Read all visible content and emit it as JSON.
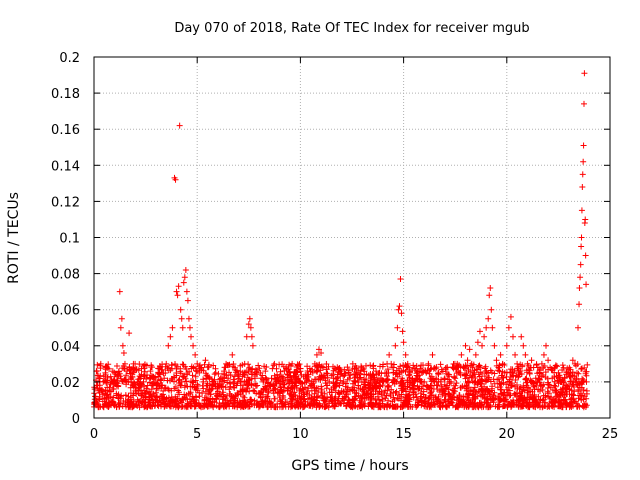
{
  "chart_data": {
    "type": "scatter",
    "title": "Day 070 of 2018, Rate Of TEC Index for receiver mgub",
    "xlabel": "GPS time / hours",
    "ylabel": "ROTI / TECUs",
    "xlim": [
      0,
      25
    ],
    "ylim": [
      0,
      0.2
    ],
    "x_ticks": [
      0,
      5,
      10,
      15,
      20,
      25
    ],
    "x_tick_labels": [
      "0",
      "5",
      "10",
      "15",
      "20",
      "25"
    ],
    "y_ticks": [
      0,
      0.02,
      0.04,
      0.06,
      0.08,
      0.1,
      0.12,
      0.14,
      0.16,
      0.18,
      0.2
    ],
    "y_tick_labels": [
      "0",
      "0.02",
      "0.04",
      "0.06",
      "0.08",
      "0.1",
      "0.12",
      "0.14",
      "0.16",
      "0.18",
      "0.2"
    ],
    "grid": true,
    "marker": "+",
    "color": "#ff0000",
    "series": [
      {
        "name": "ROTI",
        "points": [
          [
            0.05,
            0.012
          ],
          [
            0.15,
            0.018
          ],
          [
            0.25,
            0.022
          ],
          [
            0.35,
            0.015
          ],
          [
            0.45,
            0.02
          ],
          [
            0.55,
            0.025
          ],
          [
            0.65,
            0.013
          ],
          [
            0.75,
            0.017
          ],
          [
            0.85,
            0.021
          ],
          [
            0.95,
            0.016
          ],
          [
            1.05,
            0.019
          ],
          [
            1.15,
            0.024
          ],
          [
            1.25,
            0.07
          ],
          [
            1.3,
            0.05
          ],
          [
            1.35,
            0.055
          ],
          [
            1.4,
            0.04
          ],
          [
            1.45,
            0.036
          ],
          [
            1.5,
            0.03
          ],
          [
            1.6,
            0.026
          ],
          [
            1.7,
            0.047
          ],
          [
            1.8,
            0.022
          ],
          [
            1.9,
            0.018
          ],
          [
            2.0,
            0.015
          ],
          [
            2.1,
            0.02
          ],
          [
            2.2,
            0.017
          ],
          [
            2.3,
            0.024
          ],
          [
            2.4,
            0.02
          ],
          [
            2.5,
            0.012
          ],
          [
            2.6,
            0.018
          ],
          [
            2.7,
            0.022
          ],
          [
            2.8,
            0.016
          ],
          [
            2.9,
            0.02
          ],
          [
            3.0,
            0.014
          ],
          [
            3.1,
            0.019
          ],
          [
            3.2,
            0.024
          ],
          [
            3.3,
            0.018
          ],
          [
            3.4,
            0.022
          ],
          [
            3.5,
            0.03
          ],
          [
            3.6,
            0.04
          ],
          [
            3.7,
            0.045
          ],
          [
            3.8,
            0.05
          ],
          [
            3.9,
            0.133
          ],
          [
            3.95,
            0.132
          ],
          [
            4.0,
            0.07
          ],
          [
            4.05,
            0.068
          ],
          [
            4.1,
            0.073
          ],
          [
            4.15,
            0.162
          ],
          [
            4.2,
            0.06
          ],
          [
            4.25,
            0.055
          ],
          [
            4.3,
            0.05
          ],
          [
            4.35,
            0.075
          ],
          [
            4.4,
            0.078
          ],
          [
            4.45,
            0.082
          ],
          [
            4.5,
            0.07
          ],
          [
            4.55,
            0.065
          ],
          [
            4.6,
            0.055
          ],
          [
            4.65,
            0.05
          ],
          [
            4.7,
            0.045
          ],
          [
            4.8,
            0.04
          ],
          [
            4.9,
            0.035
          ],
          [
            5.0,
            0.03
          ],
          [
            5.1,
            0.025
          ],
          [
            5.2,
            0.028
          ],
          [
            5.3,
            0.02
          ],
          [
            5.4,
            0.032
          ],
          [
            5.5,
            0.018
          ],
          [
            5.6,
            0.022
          ],
          [
            5.7,
            0.016
          ],
          [
            5.8,
            0.02
          ],
          [
            5.9,
            0.025
          ],
          [
            6.0,
            0.019
          ],
          [
            6.1,
            0.017
          ],
          [
            6.2,
            0.022
          ],
          [
            6.3,
            0.026
          ],
          [
            6.4,
            0.03
          ],
          [
            6.5,
            0.022
          ],
          [
            6.6,
            0.019
          ],
          [
            6.7,
            0.035
          ],
          [
            6.8,
            0.02
          ],
          [
            6.9,
            0.018
          ],
          [
            7.0,
            0.024
          ],
          [
            7.1,
            0.02
          ],
          [
            7.2,
            0.016
          ],
          [
            7.3,
            0.03
          ],
          [
            7.4,
            0.045
          ],
          [
            7.5,
            0.052
          ],
          [
            7.55,
            0.055
          ],
          [
            7.6,
            0.05
          ],
          [
            7.65,
            0.045
          ],
          [
            7.7,
            0.04
          ],
          [
            7.8,
            0.022
          ],
          [
            7.9,
            0.018
          ],
          [
            8.0,
            0.008
          ],
          [
            8.1,
            0.015
          ],
          [
            8.2,
            0.02
          ],
          [
            8.3,
            0.026
          ],
          [
            8.4,
            0.012
          ],
          [
            8.5,
            0.018
          ],
          [
            8.6,
            0.022
          ],
          [
            8.7,
            0.016
          ],
          [
            8.8,
            0.02
          ],
          [
            8.9,
            0.014
          ],
          [
            9.0,
            0.019
          ],
          [
            9.1,
            0.023
          ],
          [
            9.2,
            0.017
          ],
          [
            9.3,
            0.021
          ],
          [
            9.4,
            0.015
          ],
          [
            9.5,
            0.02
          ],
          [
            9.6,
            0.03
          ],
          [
            9.7,
            0.025
          ],
          [
            9.8,
            0.018
          ],
          [
            9.9,
            0.022
          ],
          [
            10.0,
            0.016
          ],
          [
            10.1,
            0.019
          ],
          [
            10.2,
            0.013
          ],
          [
            10.3,
            0.02
          ],
          [
            10.4,
            0.024
          ],
          [
            10.5,
            0.018
          ],
          [
            10.6,
            0.025
          ],
          [
            10.7,
            0.03
          ],
          [
            10.8,
            0.035
          ],
          [
            10.9,
            0.038
          ],
          [
            11.0,
            0.036
          ],
          [
            11.1,
            0.028
          ],
          [
            11.2,
            0.022
          ],
          [
            11.3,
            0.018
          ],
          [
            11.4,
            0.02
          ],
          [
            11.5,
            0.016
          ],
          [
            11.6,
            0.022
          ],
          [
            11.7,
            0.019
          ],
          [
            11.8,
            0.024
          ],
          [
            11.9,
            0.018
          ],
          [
            12.0,
            0.015
          ],
          [
            12.1,
            0.02
          ],
          [
            12.2,
            0.012
          ],
          [
            12.3,
            0.017
          ],
          [
            12.4,
            0.022
          ],
          [
            12.5,
            0.016
          ],
          [
            12.6,
            0.01
          ],
          [
            12.7,
            0.014
          ],
          [
            12.8,
            0.018
          ],
          [
            12.9,
            0.012
          ],
          [
            13.0,
            0.016
          ],
          [
            13.1,
            0.02
          ],
          [
            13.2,
            0.014
          ],
          [
            13.3,
            0.018
          ],
          [
            13.4,
            0.022
          ],
          [
            13.5,
            0.016
          ],
          [
            13.6,
            0.02
          ],
          [
            13.7,
            0.024
          ],
          [
            13.8,
            0.018
          ],
          [
            13.9,
            0.022
          ],
          [
            14.0,
            0.02
          ],
          [
            14.1,
            0.025
          ],
          [
            14.2,
            0.03
          ],
          [
            14.3,
            0.035
          ],
          [
            14.4,
            0.03
          ],
          [
            14.5,
            0.025
          ],
          [
            14.6,
            0.04
          ],
          [
            14.7,
            0.05
          ],
          [
            14.75,
            0.06
          ],
          [
            14.8,
            0.062
          ],
          [
            14.85,
            0.077
          ],
          [
            14.9,
            0.058
          ],
          [
            14.95,
            0.048
          ],
          [
            15.0,
            0.042
          ],
          [
            15.1,
            0.035
          ],
          [
            15.2,
            0.03
          ],
          [
            15.3,
            0.025
          ],
          [
            15.4,
            0.02
          ],
          [
            15.5,
            0.018
          ],
          [
            15.6,
            0.022
          ],
          [
            15.7,
            0.016
          ],
          [
            15.8,
            0.02
          ],
          [
            15.9,
            0.025
          ],
          [
            16.0,
            0.02
          ],
          [
            16.1,
            0.018
          ],
          [
            16.2,
            0.03
          ],
          [
            16.3,
            0.022
          ],
          [
            16.4,
            0.035
          ],
          [
            16.5,
            0.02
          ],
          [
            16.6,
            0.018
          ],
          [
            16.7,
            0.025
          ],
          [
            16.8,
            0.02
          ],
          [
            16.9,
            0.016
          ],
          [
            17.0,
            0.022
          ],
          [
            17.1,
            0.018
          ],
          [
            17.2,
            0.024
          ],
          [
            17.3,
            0.02
          ],
          [
            17.4,
            0.028
          ],
          [
            17.5,
            0.022
          ],
          [
            17.6,
            0.03
          ],
          [
            17.7,
            0.025
          ],
          [
            17.8,
            0.035
          ],
          [
            17.9,
            0.028
          ],
          [
            18.0,
            0.04
          ],
          [
            18.1,
            0.032
          ],
          [
            18.2,
            0.038
          ],
          [
            18.3,
            0.03
          ],
          [
            18.4,
            0.025
          ],
          [
            18.5,
            0.035
          ],
          [
            18.6,
            0.042
          ],
          [
            18.7,
            0.048
          ],
          [
            18.8,
            0.04
          ],
          [
            18.9,
            0.045
          ],
          [
            19.0,
            0.05
          ],
          [
            19.1,
            0.055
          ],
          [
            19.15,
            0.068
          ],
          [
            19.2,
            0.072
          ],
          [
            19.25,
            0.06
          ],
          [
            19.3,
            0.05
          ],
          [
            19.4,
            0.04
          ],
          [
            19.5,
            0.032
          ],
          [
            19.6,
            0.028
          ],
          [
            19.7,
            0.035
          ],
          [
            19.8,
            0.03
          ],
          [
            19.9,
            0.025
          ],
          [
            20.0,
            0.04
          ],
          [
            20.1,
            0.05
          ],
          [
            20.2,
            0.056
          ],
          [
            20.3,
            0.045
          ],
          [
            20.4,
            0.035
          ],
          [
            20.5,
            0.03
          ],
          [
            20.6,
            0.025
          ],
          [
            20.7,
            0.045
          ],
          [
            20.8,
            0.04
          ],
          [
            20.9,
            0.035
          ],
          [
            21.0,
            0.03
          ],
          [
            21.1,
            0.025
          ],
          [
            21.2,
            0.032
          ],
          [
            21.3,
            0.028
          ],
          [
            21.4,
            0.022
          ],
          [
            21.5,
            0.02
          ],
          [
            21.6,
            0.025
          ],
          [
            21.7,
            0.03
          ],
          [
            21.8,
            0.035
          ],
          [
            21.9,
            0.04
          ],
          [
            22.0,
            0.032
          ],
          [
            22.1,
            0.028
          ],
          [
            22.2,
            0.022
          ],
          [
            22.3,
            0.018
          ],
          [
            22.4,
            0.012
          ],
          [
            22.5,
            0.025
          ],
          [
            22.6,
            0.02
          ],
          [
            22.7,
            0.016
          ],
          [
            22.8,
            0.022
          ],
          [
            22.9,
            0.018
          ],
          [
            23.0,
            0.025
          ],
          [
            23.1,
            0.02
          ],
          [
            23.2,
            0.032
          ],
          [
            23.3,
            0.03
          ],
          [
            23.4,
            0.025
          ],
          [
            23.45,
            0.05
          ],
          [
            23.5,
            0.063
          ],
          [
            23.52,
            0.072
          ],
          [
            23.55,
            0.078
          ],
          [
            23.58,
            0.085
          ],
          [
            23.6,
            0.095
          ],
          [
            23.62,
            0.1
          ],
          [
            23.64,
            0.115
          ],
          [
            23.66,
            0.128
          ],
          [
            23.68,
            0.135
          ],
          [
            23.7,
            0.142
          ],
          [
            23.72,
            0.151
          ],
          [
            23.74,
            0.174
          ],
          [
            23.76,
            0.191
          ],
          [
            23.78,
            0.108
          ],
          [
            23.8,
            0.11
          ],
          [
            23.82,
            0.09
          ],
          [
            23.84,
            0.074
          ],
          [
            23.86,
            0.02
          ],
          [
            23.88,
            0.015
          ]
        ]
      }
    ]
  }
}
